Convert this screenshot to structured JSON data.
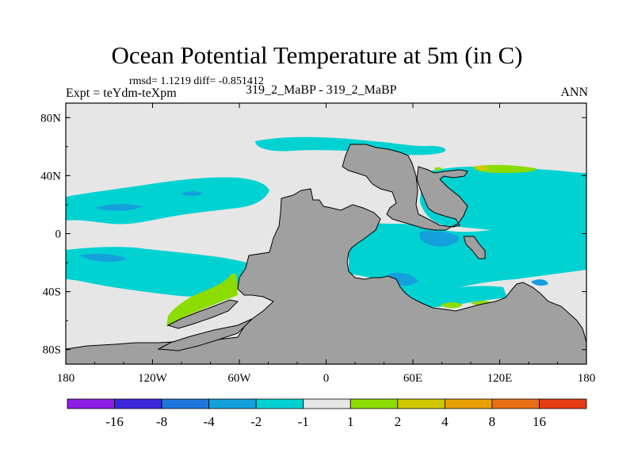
{
  "chart_data": {
    "type": "contour-map",
    "title": "Ocean Potential Temperature at 5m (in C)",
    "stats": "rmsd= 1.1219 diff= -0.851412",
    "left_label": "Expt = teYdm-teXpm",
    "center_label": "319_2_MaBP - 319_2_MaBP",
    "right_label": "ANN",
    "x_ticks": [
      "180",
      "120W",
      "60W",
      "0",
      "60E",
      "120E",
      "180"
    ],
    "y_ticks": [
      "80N",
      "40N",
      "0",
      "40S",
      "80S"
    ],
    "xlim": [
      -180,
      180
    ],
    "ylim": [
      -90,
      90
    ],
    "colorbar": {
      "labels": [
        "-16",
        "-8",
        "-4",
        "-2",
        "-1",
        "1",
        "2",
        "4",
        "8",
        "16"
      ],
      "colors": [
        "#8c1ee6",
        "#3c28dc",
        "#1e78dc",
        "#14a0dc",
        "#00d2d2",
        "#e6e6e6",
        "#8cdc00",
        "#d2c800",
        "#e6a000",
        "#e66e14",
        "#e63c14"
      ]
    },
    "land_color": "#a0a0a0",
    "background_color": "#e6e6e6"
  }
}
